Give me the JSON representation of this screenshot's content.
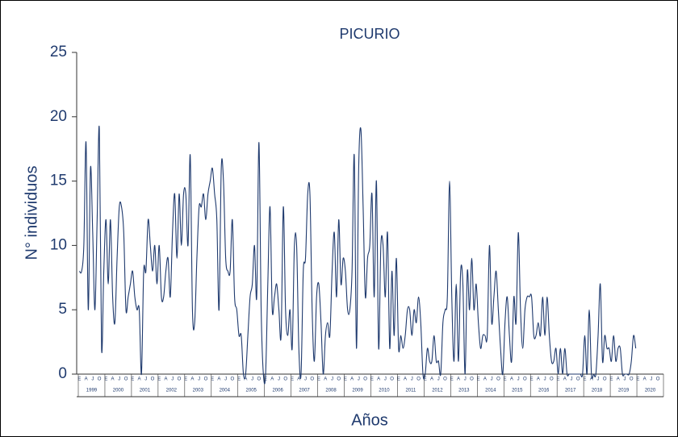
{
  "chart_data": {
    "type": "line",
    "title": "PICURIO",
    "ylabel": "N° individuos",
    "xlabel": "Años",
    "categories": [
      "E",
      null,
      null,
      "A",
      null,
      null,
      "J",
      null,
      null,
      "O",
      null,
      null,
      "E",
      null,
      null,
      "A",
      null,
      null,
      "J",
      null,
      null,
      "O",
      null,
      null,
      "E",
      null,
      null,
      "A",
      null,
      null,
      "J",
      null,
      null,
      "O",
      null,
      null,
      "E",
      null,
      null,
      "A",
      null,
      null,
      "J",
      null,
      null,
      "O",
      null,
      null,
      "E",
      null,
      null,
      "A",
      null,
      null,
      "J",
      null,
      null,
      "O",
      null,
      null,
      "E",
      null,
      null,
      "A",
      null,
      null,
      "J",
      null,
      null,
      "O",
      null,
      null,
      "E",
      null,
      null,
      "A",
      null,
      null,
      "J",
      null,
      null,
      "O",
      null,
      null,
      "E",
      null,
      null,
      "A",
      null,
      null,
      "J",
      null,
      null,
      "O",
      null,
      null,
      "E",
      null,
      null,
      "A",
      null,
      null,
      "J",
      null,
      null,
      "O",
      null,
      null,
      "E",
      null,
      null,
      "A",
      null,
      null,
      "J",
      null,
      null,
      "O",
      null,
      null,
      "E",
      null,
      null,
      "A",
      null,
      null,
      "J",
      null,
      null,
      "O",
      null,
      null,
      "E",
      null,
      null,
      "A",
      null,
      null,
      "J",
      null,
      null,
      "O",
      null,
      null,
      "E",
      null,
      null,
      "A",
      null,
      null,
      "J",
      null,
      null,
      "O",
      null,
      null,
      "E",
      null,
      null,
      "A",
      null,
      null,
      "J",
      null,
      null,
      "O",
      null,
      null,
      "E",
      null,
      null,
      "A",
      null,
      null,
      "J",
      null,
      null,
      "O",
      null,
      null,
      "E",
      null,
      null,
      "A",
      null,
      null,
      "J",
      null,
      null,
      "O",
      null,
      null,
      "E",
      null,
      null,
      "A",
      null,
      null,
      "J",
      null,
      null,
      "O",
      null,
      null,
      "E",
      null,
      null,
      "A",
      null,
      null,
      "J",
      null,
      null,
      "O",
      null,
      null,
      "E",
      null,
      null,
      "A",
      null,
      null,
      "J",
      null,
      null,
      "O",
      null,
      null,
      "E",
      null,
      null,
      "A",
      null,
      null,
      "J",
      null,
      null,
      "O",
      null,
      null,
      "E",
      null,
      null,
      "A",
      null,
      null,
      "J",
      null,
      null,
      "O",
      null,
      null,
      "E",
      null,
      null,
      "A",
      null,
      null,
      "J",
      null,
      null,
      "O",
      null,
      null
    ],
    "years": [
      "1999",
      "2000",
      "2001",
      "2002",
      "2003",
      "2004",
      "2005",
      "2006",
      "2007",
      "2008",
      "2009",
      "2010",
      "2011",
      "2012",
      "2013",
      "2014",
      "2015",
      "2016",
      "2017",
      "2018",
      "2019",
      "2020"
    ],
    "series": [
      {
        "color": "#1f3a6e",
        "values": [
          8,
          8,
          10,
          18,
          5,
          16,
          11,
          5,
          12,
          19,
          2,
          8,
          12,
          7,
          12,
          6,
          4,
          9,
          13,
          13,
          11,
          5,
          6,
          7,
          8,
          6,
          5,
          5,
          0,
          8,
          8,
          12,
          10,
          8,
          10,
          7,
          10,
          6,
          6,
          8,
          9,
          6,
          11,
          14,
          9,
          14,
          10,
          14,
          14,
          10,
          17,
          5,
          4,
          9,
          13,
          13,
          14,
          12,
          14,
          15,
          16,
          14,
          12,
          5,
          16,
          15,
          9,
          8,
          8,
          12,
          6,
          5,
          3,
          3,
          0,
          0,
          3,
          6,
          7,
          10,
          6,
          18,
          5,
          0,
          0,
          7,
          13,
          5,
          6,
          7,
          5,
          3,
          13,
          5,
          3,
          5,
          2,
          10,
          10,
          2,
          0,
          8,
          9,
          14,
          14,
          5,
          1,
          6,
          7,
          4,
          0,
          3,
          4,
          3,
          8,
          11,
          6,
          12,
          7,
          9,
          8,
          5,
          5,
          8,
          17,
          2,
          16,
          19,
          13,
          6,
          9,
          10,
          14,
          6,
          15,
          2,
          10,
          10,
          6,
          11,
          2,
          8,
          3,
          9,
          2,
          3,
          2,
          3,
          5,
          5,
          3,
          5,
          4,
          6,
          4,
          0,
          0,
          2,
          1,
          1,
          3,
          1,
          1,
          0,
          4,
          5,
          6,
          15,
          6,
          1,
          7,
          1,
          8,
          7,
          0,
          8,
          5,
          9,
          5,
          7,
          4,
          2,
          3,
          3,
          3,
          10,
          4,
          6,
          8,
          5,
          2,
          0,
          4,
          6,
          3,
          1,
          6,
          4,
          11,
          5,
          2,
          5,
          6,
          6,
          6,
          3,
          3,
          4,
          3,
          6,
          3,
          6,
          3,
          1,
          1,
          2,
          0,
          2,
          0,
          2,
          0,
          0,
          0,
          0,
          0,
          0,
          0,
          0,
          3,
          0,
          5,
          0,
          0,
          0,
          3,
          7,
          1,
          3,
          2,
          2,
          1,
          3,
          1,
          2,
          2,
          0,
          0,
          0,
          0,
          1,
          3,
          2,
          null,
          null,
          null,
          null,
          null,
          null,
          null,
          null,
          null,
          null,
          null,
          null
        ]
      }
    ],
    "ylim": [
      0,
      25
    ],
    "yticks": [
      0,
      5,
      10,
      15,
      20,
      25
    ],
    "grid": false
  }
}
